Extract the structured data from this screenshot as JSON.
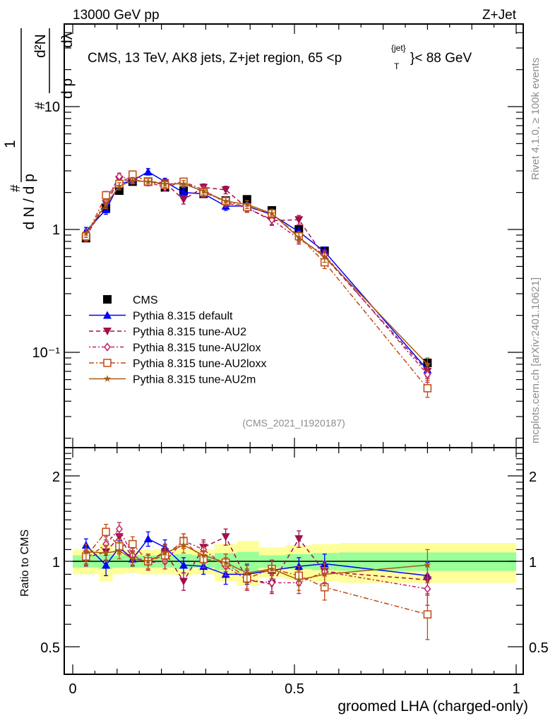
{
  "header": {
    "energy_label": "13000 GeV pp",
    "process_label": "Z+Jet"
  },
  "side_labels": {
    "rivet": "Rivet 4.1.0, ≥ 100k events",
    "mcplots": "mcplots.cern.ch [arXiv:2401.10621]"
  },
  "chart_data": [
    {
      "type": "line",
      "panel": "main",
      "title": "CMS, 13 TeV, AK8 jets, Z+jet region, 65 <p_T^{jet}< 88 GeV",
      "title_parts": {
        "main": "CMS, 13 TeV, AK8 jets, Z+jet region, 65 <p",
        "sup": "{jet}",
        "sub": "T",
        "tail": "}< 88 GeV"
      },
      "ylabel": "1/dN/dp_T # d²N/dp_T dλ",
      "ylabel_parts": {
        "a": "#",
        "b": "d N / d p",
        "c": "1",
        "d": "#",
        "e": "d p",
        "f": "d²N",
        "g": "dλ",
        "h": "T"
      },
      "yscale": "log",
      "ylim": [
        0.018,
        60
      ],
      "xlim": [
        -0.019,
        1.016
      ],
      "y_ticks": [
        {
          "value": 0.1,
          "label": "10⁻¹"
        },
        {
          "value": 1,
          "label": "1"
        },
        {
          "value": 10,
          "label": "10"
        }
      ],
      "reference": "(CMS_2021_I1920187)",
      "legend_position": "middle-left",
      "x": [
        0.03,
        0.075,
        0.105,
        0.135,
        0.17,
        0.208,
        0.25,
        0.295,
        0.345,
        0.393,
        0.449,
        0.51,
        0.568,
        0.8
      ],
      "series": [
        {
          "name": "CMS",
          "color": "#000000",
          "marker": "square",
          "line": "none",
          "values": [
            0.85,
            1.5,
            2.07,
            2.45,
            2.45,
            2.2,
            2.07,
            1.95,
            1.72,
            1.76,
            1.43,
            1.0,
            0.67,
            0.082
          ],
          "errors": [
            0.04,
            0.07,
            0.08,
            0.08,
            0.08,
            0.08,
            0.08,
            0.08,
            0.07,
            0.07,
            0.06,
            0.05,
            0.04,
            0.006
          ]
        },
        {
          "name": "Pythia 8.315 default",
          "color": "#0000ff",
          "marker": "triangle-up",
          "line": "solid",
          "values": [
            0.97,
            1.45,
            2.35,
            2.5,
            2.95,
            2.45,
            2.0,
            1.95,
            1.55,
            1.55,
            1.32,
            0.96,
            0.66,
            0.072
          ],
          "errors": [
            0.07,
            0.12,
            0.15,
            0.15,
            0.18,
            0.16,
            0.14,
            0.13,
            0.12,
            0.12,
            0.1,
            0.08,
            0.06,
            0.009
          ]
        },
        {
          "name": "Pythia 8.315 tune-AU2",
          "color": "#a0104a",
          "marker": "triangle-down",
          "line": "dashed",
          "values": [
            0.88,
            1.62,
            2.55,
            2.5,
            2.45,
            2.4,
            1.75,
            2.2,
            2.1,
            1.5,
            1.18,
            1.2,
            0.6,
            0.07
          ],
          "errors": [
            0.07,
            0.12,
            0.16,
            0.15,
            0.15,
            0.16,
            0.14,
            0.15,
            0.15,
            0.12,
            0.1,
            0.1,
            0.06,
            0.009
          ]
        },
        {
          "name": "Pythia 8.315 tune-AU2lox",
          "color": "#c0206a",
          "marker": "diamond-open",
          "line": "dashdotted",
          "values": [
            0.87,
            1.73,
            2.7,
            2.55,
            2.42,
            2.2,
            2.45,
            2.1,
            1.65,
            1.5,
            1.2,
            0.84,
            0.62,
            0.066
          ],
          "errors": [
            0.07,
            0.13,
            0.17,
            0.16,
            0.15,
            0.15,
            0.16,
            0.15,
            0.13,
            0.12,
            0.1,
            0.08,
            0.06,
            0.009
          ]
        },
        {
          "name": "Pythia 8.315 tune-AU2loxx",
          "color": "#c04a10",
          "marker": "square-open",
          "line": "dashdot-long",
          "values": [
            0.88,
            1.9,
            2.35,
            2.8,
            2.45,
            2.3,
            2.45,
            2.0,
            1.7,
            1.52,
            1.35,
            0.88,
            0.54,
            0.051
          ],
          "errors": [
            0.07,
            0.14,
            0.16,
            0.17,
            0.15,
            0.15,
            0.16,
            0.15,
            0.13,
            0.12,
            0.11,
            0.08,
            0.06,
            0.008
          ]
        },
        {
          "name": "Pythia 8.315 tune-AU2m",
          "color": "#a85a10",
          "marker": "star",
          "line": "solid",
          "values": [
            0.93,
            1.6,
            2.25,
            2.5,
            2.45,
            2.35,
            2.35,
            2.05,
            1.7,
            1.6,
            1.35,
            0.86,
            0.6,
            0.08
          ],
          "errors": [
            0.07,
            0.12,
            0.15,
            0.15,
            0.15,
            0.15,
            0.15,
            0.14,
            0.12,
            0.12,
            0.1,
            0.08,
            0.06,
            0.01
          ]
        }
      ]
    },
    {
      "type": "line",
      "panel": "ratio",
      "ylabel": "Ratio to CMS",
      "xlabel": "groomed LHA (charged-only)",
      "yscale": "log",
      "ylim": [
        0.4,
        2.5
      ],
      "xlim": [
        -0.019,
        1.016
      ],
      "y_ticks": [
        {
          "value": 0.5,
          "label": "0.5"
        },
        {
          "value": 1,
          "label": "1"
        },
        {
          "value": 2,
          "label": "2"
        }
      ],
      "x_ticks": [
        {
          "value": 0,
          "label": "0"
        },
        {
          "value": 0.5,
          "label": "0.5"
        },
        {
          "value": 1,
          "label": "1"
        }
      ],
      "bands": {
        "edges": [
          0.0,
          0.06,
          0.09,
          0.12,
          0.15,
          0.19,
          0.23,
          0.27,
          0.32,
          0.37,
          0.42,
          0.48,
          0.54,
          0.6,
          1.0
        ],
        "inner": [
          0.05,
          0.06,
          0.05,
          0.05,
          0.05,
          0.05,
          0.06,
          0.05,
          0.07,
          0.08,
          0.05,
          0.06,
          0.07,
          0.075
        ],
        "outer": [
          0.1,
          0.15,
          0.1,
          0.09,
          0.1,
          0.1,
          0.11,
          0.1,
          0.15,
          0.18,
          0.12,
          0.14,
          0.15,
          0.16
        ],
        "inner_color": "#99ff99",
        "outer_color": "#ffff99"
      },
      "x": [
        0.03,
        0.075,
        0.105,
        0.135,
        0.17,
        0.208,
        0.25,
        0.295,
        0.345,
        0.393,
        0.449,
        0.51,
        0.568,
        0.8
      ],
      "series": [
        {
          "name": "Pythia 8.315 default",
          "color": "#0000ff",
          "values": [
            1.14,
            0.97,
            1.12,
            1.02,
            1.2,
            1.12,
            0.97,
            0.96,
            0.9,
            0.9,
            0.93,
            0.96,
            0.98,
            0.89
          ],
          "errors": [
            0.06,
            0.08,
            0.06,
            0.06,
            0.07,
            0.07,
            0.06,
            0.06,
            0.07,
            0.07,
            0.07,
            0.07,
            0.08,
            0.1
          ]
        },
        {
          "name": "Pythia 8.315 tune-AU2",
          "color": "#a0104a",
          "values": [
            1.03,
            1.08,
            1.22,
            1.03,
            1.0,
            1.08,
            0.85,
            1.12,
            1.22,
            0.86,
            0.83,
            1.2,
            0.92,
            0.86
          ],
          "errors": [
            0.06,
            0.07,
            0.07,
            0.06,
            0.06,
            0.07,
            0.06,
            0.07,
            0.08,
            0.07,
            0.06,
            0.08,
            0.08,
            0.1
          ]
        },
        {
          "name": "Pythia 8.315 tune-AU2lox",
          "color": "#c0206a",
          "values": [
            1.02,
            1.15,
            1.3,
            1.05,
            0.99,
            1.0,
            1.18,
            1.1,
            0.96,
            0.86,
            0.84,
            0.84,
            0.92,
            0.8
          ],
          "errors": [
            0.06,
            0.07,
            0.07,
            0.06,
            0.06,
            0.06,
            0.07,
            0.07,
            0.07,
            0.07,
            0.06,
            0.07,
            0.08,
            0.1
          ]
        },
        {
          "name": "Pythia 8.315 tune-AU2loxx",
          "color": "#c04a10",
          "values": [
            1.04,
            1.27,
            1.13,
            1.15,
            1.0,
            1.05,
            1.18,
            1.02,
            0.99,
            0.87,
            0.94,
            0.89,
            0.81,
            0.65
          ],
          "errors": [
            0.06,
            0.08,
            0.07,
            0.07,
            0.06,
            0.07,
            0.07,
            0.07,
            0.07,
            0.07,
            0.07,
            0.07,
            0.08,
            0.12
          ]
        },
        {
          "name": "Pythia 8.315 tune-AU2m",
          "color": "#a85a10",
          "values": [
            1.08,
            1.07,
            1.09,
            1.02,
            1.0,
            1.07,
            1.14,
            1.05,
            0.99,
            0.91,
            0.94,
            0.86,
            0.9,
            0.97
          ],
          "errors": [
            0.07,
            0.07,
            0.07,
            0.06,
            0.06,
            0.07,
            0.07,
            0.07,
            0.07,
            0.07,
            0.07,
            0.07,
            0.08,
            0.13
          ]
        }
      ]
    }
  ]
}
